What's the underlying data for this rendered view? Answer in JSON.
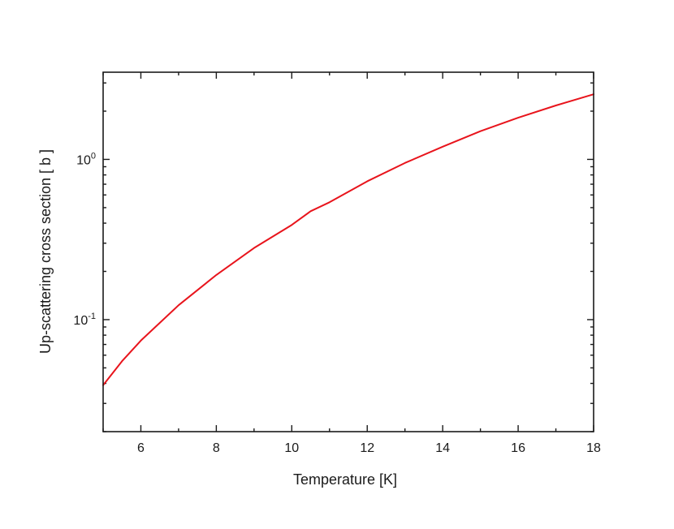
{
  "chart_data": {
    "type": "line",
    "title": "",
    "xlabel": "Temperature [K]",
    "ylabel": "Up-scattering cross section [ b ]",
    "xlim": [
      5,
      18
    ],
    "ylim": [
      0.02,
      3.5
    ],
    "yscale": "log",
    "grid": false,
    "legend": "none",
    "x_ticks": [
      6,
      8,
      10,
      12,
      14,
      16,
      18
    ],
    "x_tick_labels": [
      "6",
      "8",
      "10",
      "12",
      "14",
      "16",
      "18"
    ],
    "y_major_ticks": [
      {
        "value": 0.1,
        "base": "10",
        "exponent": "-1"
      },
      {
        "value": 1,
        "base": "10",
        "exponent": "0"
      }
    ],
    "y_minor_ticks": [
      0.02,
      0.03,
      0.04,
      0.05,
      0.06,
      0.07,
      0.08,
      0.09,
      0.2,
      0.3,
      0.4,
      0.5,
      0.6,
      0.7,
      0.8,
      0.9,
      2,
      3
    ],
    "series": [
      {
        "color": "#e8141c",
        "x": [
          5,
          5.5,
          6,
          7,
          8,
          9,
          10,
          10.5,
          11,
          12,
          13,
          14,
          15,
          16,
          17,
          18
        ],
        "y": [
          0.039,
          0.055,
          0.074,
          0.123,
          0.19,
          0.28,
          0.39,
          0.475,
          0.54,
          0.73,
          0.95,
          1.2,
          1.5,
          1.82,
          2.17,
          2.55
        ]
      }
    ]
  }
}
